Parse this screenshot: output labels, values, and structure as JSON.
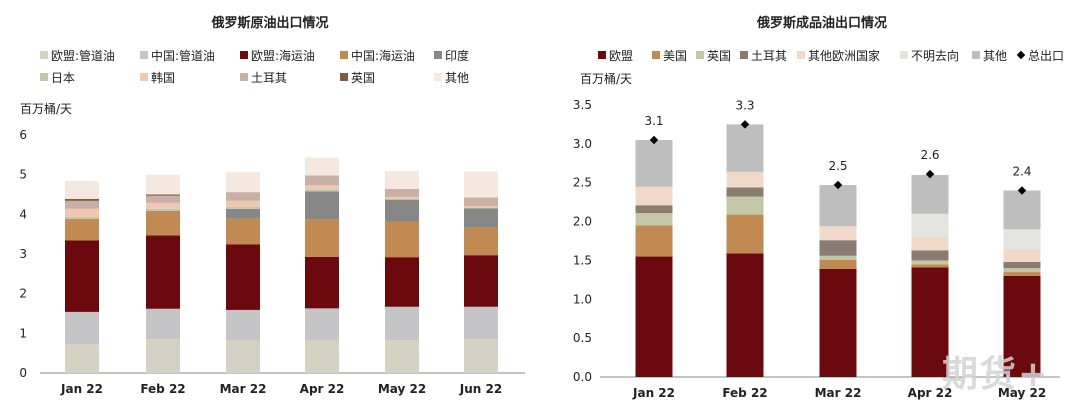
{
  "watermark": "期货+",
  "chart_data": [
    {
      "type": "bar",
      "stacked": true,
      "title": "俄罗斯原油出口情况",
      "ylabel": "百万桶/天",
      "ylim": [
        0,
        6
      ],
      "yticks": [
        "0",
        "1",
        "2",
        "3",
        "4",
        "5",
        "6"
      ],
      "categories": [
        "Jan 22",
        "Feb 22",
        "Mar 22",
        "Apr 22",
        "May 22",
        "Jun 22"
      ],
      "legend_placement": "top",
      "series": [
        {
          "name": "欧盟:管道油",
          "color": "#d5d2c3",
          "values": [
            0.73,
            0.85,
            0.82,
            0.82,
            0.83,
            0.85
          ]
        },
        {
          "name": "中国:管道油",
          "color": "#c5c5c8",
          "values": [
            0.81,
            0.77,
            0.77,
            0.81,
            0.84,
            0.82
          ]
        },
        {
          "name": "欧盟:海运油",
          "color": "#6b0a0e",
          "values": [
            1.8,
            1.85,
            1.65,
            1.3,
            1.25,
            1.3
          ]
        },
        {
          "name": "中国:海运油",
          "color": "#c08a52",
          "values": [
            0.55,
            0.6,
            0.65,
            0.95,
            0.9,
            0.7
          ]
        },
        {
          "name": "印度",
          "color": "#878787",
          "values": [
            0.0,
            0.02,
            0.25,
            0.7,
            0.55,
            0.48
          ]
        },
        {
          "name": "日本",
          "color": "#c4c7a7",
          "values": [
            0.05,
            0.05,
            0.05,
            0.05,
            0.02,
            0.01
          ]
        },
        {
          "name": "韩国",
          "color": "#f0c8b0",
          "values": [
            0.2,
            0.15,
            0.15,
            0.1,
            0.05,
            0.05
          ]
        },
        {
          "name": "土耳其",
          "color": "#c8b1a4",
          "values": [
            0.2,
            0.18,
            0.22,
            0.25,
            0.2,
            0.22
          ]
        },
        {
          "name": "英国",
          "color": "#7d5d3f",
          "values": [
            0.05,
            0.03,
            0.0,
            0.0,
            0.0,
            0.0
          ]
        },
        {
          "name": "其他",
          "color": "#f4e8df",
          "values": [
            0.45,
            0.5,
            0.5,
            0.45,
            0.45,
            0.65
          ]
        }
      ]
    },
    {
      "type": "bar",
      "stacked": true,
      "title": "俄罗斯成品油出口情况",
      "ylabel": "百万桶/天",
      "ylim": [
        0,
        3.5
      ],
      "yticks": [
        "0.0",
        "0.5",
        "1.0",
        "1.5",
        "2.0",
        "2.5",
        "3.0",
        "3.5"
      ],
      "categories": [
        "Jan 22",
        "Feb 22",
        "Mar 22",
        "Apr 22",
        "May 22"
      ],
      "legend_placement": "top",
      "series": [
        {
          "name": "欧盟",
          "color": "#6b0a0e",
          "values": [
            1.55,
            1.59,
            1.39,
            1.41,
            1.3
          ]
        },
        {
          "name": "美国",
          "color": "#c08a52",
          "values": [
            0.4,
            0.5,
            0.12,
            0.04,
            0.05
          ]
        },
        {
          "name": "英国",
          "color": "#c4c7a7",
          "values": [
            0.16,
            0.23,
            0.05,
            0.05,
            0.05
          ]
        },
        {
          "name": "土耳其",
          "color": "#8a7c70",
          "values": [
            0.1,
            0.12,
            0.2,
            0.13,
            0.08
          ]
        },
        {
          "name": "其他欧洲国家",
          "color": "#f0d9c8",
          "values": [
            0.24,
            0.2,
            0.18,
            0.17,
            0.17
          ]
        },
        {
          "name": "不明去向",
          "color": "#e4e4e0",
          "values": [
            0.0,
            0.0,
            0.0,
            0.3,
            0.25
          ]
        },
        {
          "name": "其他",
          "color": "#bebebe",
          "values": [
            0.6,
            0.61,
            0.53,
            0.5,
            0.5
          ]
        }
      ],
      "total": {
        "name": "总出口",
        "values": [
          3.05,
          3.25,
          2.47,
          2.61,
          2.4
        ],
        "labels": [
          "3.1",
          "3.3",
          "2.5",
          "2.6",
          "2.4"
        ]
      }
    }
  ]
}
